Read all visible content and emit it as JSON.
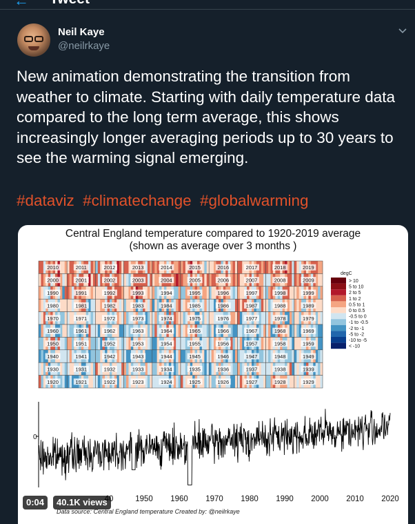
{
  "header": {
    "back_icon": "arrow-left-icon",
    "title": "Tweet"
  },
  "author": {
    "name": "Neil Kaye",
    "handle": "@neilrkaye",
    "avatar_icon": "avatar-photo"
  },
  "menu_icon": "chevron-down-icon",
  "tweet": {
    "lines": [
      "New animation demonstrating the transition from",
      "weather to climate. Starting with daily temperature data",
      "compared to the long term average, this shows",
      "increasingly longer averaging periods up to 30 years to",
      "see the warming signal emerging."
    ],
    "hashtags": [
      "#dataviz",
      "#climatechange",
      "#globalwarming"
    ],
    "hashtag_color": "#e0512a"
  },
  "media": {
    "title": "Central England temperature compared to 1920-2019 average",
    "subtitle": "(shown as average over 3 months )",
    "duration": "0:04",
    "views": "40.1K views",
    "credit": "Data source: Central England temperature   Created by: @neilrkaye"
  },
  "chart_data": [
    {
      "type": "heatmap",
      "title": "Central England temperature compared to 1920-2019 average",
      "rows": [
        [
          "2010",
          "2011",
          "2012",
          "2013",
          "2014",
          "2015",
          "2016",
          "2017",
          "2018",
          "2019"
        ],
        [
          "2000",
          "2001",
          "2002",
          "2003",
          "2004",
          "2005",
          "2006",
          "2007",
          "2008",
          "2009"
        ],
        [
          "1990",
          "1991",
          "1992",
          "1993",
          "1994",
          "1995",
          "1996",
          "1997",
          "1998",
          "1999"
        ],
        [
          "1980",
          "1981",
          "1982",
          "1983",
          "1984",
          "1985",
          "1986",
          "1987",
          "1988",
          "1989"
        ],
        [
          "1970",
          "1971",
          "1972",
          "1973",
          "1974",
          "1975",
          "1976",
          "1977",
          "1978",
          "1979"
        ],
        [
          "1960",
          "1961",
          "1962",
          "1963",
          "1964",
          "1965",
          "1966",
          "1967",
          "1968",
          "1969"
        ],
        [
          "1950",
          "1951",
          "1952",
          "1953",
          "1954",
          "1955",
          "1956",
          "1957",
          "1958",
          "1959"
        ],
        [
          "1940",
          "1941",
          "1942",
          "1943",
          "1944",
          "1945",
          "1946",
          "1947",
          "1948",
          "1949"
        ],
        [
          "1930",
          "1931",
          "1932",
          "1933",
          "1934",
          "1935",
          "1936",
          "1937",
          "1938",
          "1939"
        ],
        [
          "1920",
          "1921",
          "1922",
          "1923",
          "1924",
          "1925",
          "1926",
          "1927",
          "1928",
          "1929"
        ]
      ],
      "row_mean_anomaly": [
        0.9,
        0.7,
        0.5,
        0.2,
        0.0,
        -0.3,
        -0.15,
        -0.35,
        -0.2,
        -0.25
      ],
      "legend_title": "degC",
      "legend": [
        {
          "label": "> 10",
          "color": "#67000d"
        },
        {
          "label": "5 to 10",
          "color": "#8b0f16"
        },
        {
          "label": "2 to 5",
          "color": "#b2182b"
        },
        {
          "label": "1 to 2",
          "color": "#d6604d"
        },
        {
          "label": "0.5 to 1",
          "color": "#f4a582"
        },
        {
          "label": "0 to 0.5",
          "color": "#fddbc7"
        },
        {
          "label": "-0.5 to 0",
          "color": "#d1e5f0"
        },
        {
          "label": "-1 to -0.5",
          "color": "#92c5de"
        },
        {
          "label": "-2 to -1",
          "color": "#4393c3"
        },
        {
          "label": "-5 to -2",
          "color": "#2166ac"
        },
        {
          "label": "-10 to -5",
          "color": "#083d8c"
        },
        {
          "label": "< -10",
          "color": "#08206b"
        }
      ]
    },
    {
      "type": "line",
      "ytick": "0",
      "xticks": [
        "40",
        "1950",
        "1960",
        "1970",
        "1980",
        "1990",
        "2000",
        "2010",
        "2020"
      ],
      "xtick_values": [
        1940,
        1950,
        1960,
        1970,
        1980,
        1990,
        2000,
        2010,
        2020
      ],
      "xlim": [
        1920,
        2020
      ]
    }
  ]
}
